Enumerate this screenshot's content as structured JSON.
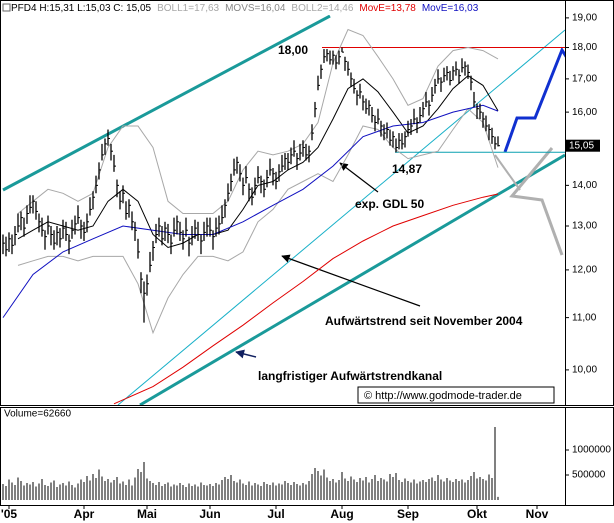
{
  "chart_data": [
    {
      "type": "ohlc",
      "header": "PFD4 H:15,31 L:15,03 C: 15,05",
      "log_scale": true,
      "color": "#000000",
      "xlim": [
        0,
        188
      ],
      "ylim": [
        9.38,
        19.1
      ],
      "yticks": [
        {
          "value": 10,
          "label": "10,00"
        },
        {
          "value": 11,
          "label": "11,00"
        },
        {
          "value": 12,
          "label": "12,00"
        },
        {
          "value": 13,
          "label": "13,00"
        },
        {
          "value": 14,
          "label": "14,00"
        },
        {
          "value": 15,
          "label": "15,00"
        },
        {
          "value": 16,
          "label": "16,00"
        },
        {
          "value": 17,
          "label": "17,00"
        },
        {
          "value": 18,
          "label": "18,00"
        },
        {
          "value": 19,
          "label": "19,00"
        }
      ],
      "high": [
        12.8,
        12.75,
        12.85,
        12.8,
        13.0,
        13.3,
        13.35,
        13.2,
        13.5,
        13.75,
        13.75,
        13.6,
        13.3,
        13.2,
        12.9,
        13.25,
        13.0,
        12.9,
        13.0,
        12.95,
        13.15,
        13.1,
        12.8,
        13.15,
        13.25,
        13.5,
        13.15,
        13.1,
        13.3,
        13.7,
        13.85,
        14.25,
        14.6,
        15.1,
        15.25,
        15.5,
        15.1,
        14.8,
        14.15,
        13.85,
        14.0,
        13.6,
        13.65,
        13.35,
        13.1,
        12.7,
        11.95,
        11.75,
        11.9,
        12.4,
        12.65,
        13.05,
        13.2,
        13.0,
        13.1,
        13.05,
        12.8,
        13.2,
        13.25,
        13.1,
        12.9,
        13.2,
        12.75,
        13.0,
        13.15,
        13.1,
        12.8,
        13.1,
        13.2,
        13.2,
        12.9,
        13.2,
        13.25,
        13.5,
        13.65,
        14.05,
        14.3,
        14.7,
        14.75,
        14.55,
        14.2,
        14.5,
        14.05,
        13.95,
        14.2,
        14.5,
        14.25,
        14.15,
        14.4,
        14.7,
        14.45,
        14.35,
        14.55,
        14.8,
        14.85,
        14.85,
        15.0,
        15.2,
        14.85,
        15.1,
        15.2,
        15.1,
        15.05,
        15.65,
        16.3,
        17.1,
        17.45,
        17.95,
        17.95,
        17.9,
        17.9,
        17.75,
        17.9,
        18.0,
        17.7,
        17.55,
        17.2,
        17.0,
        16.65,
        16.85,
        16.5,
        16.4,
        16.35,
        16.15,
        15.9,
        16.1,
        15.75,
        15.65,
        15.7,
        15.5,
        15.45,
        15.25,
        15.4,
        15.4,
        15.45,
        15.75,
        15.8,
        16.1,
        15.85,
        16.15,
        16.3,
        16.6,
        16.35,
        16.75,
        17.0,
        17.3,
        17.05,
        17.35,
        17.4,
        17.25,
        17.4,
        17.55,
        17.3,
        17.65,
        17.55,
        17.45,
        17.1,
        16.6,
        16.25,
        16.25,
        16.0,
        15.9,
        15.65,
        15.55,
        15.3,
        15.31
      ],
      "low": [
        12.35,
        12.3,
        12.4,
        12.35,
        12.55,
        12.85,
        12.9,
        12.75,
        13.05,
        13.3,
        13.3,
        13.15,
        12.85,
        12.75,
        12.45,
        12.8,
        12.55,
        12.45,
        12.55,
        12.5,
        12.7,
        12.65,
        12.35,
        12.7,
        12.8,
        13.05,
        12.7,
        12.65,
        12.85,
        13.25,
        13.4,
        13.8,
        14.15,
        14.65,
        14.8,
        15.05,
        14.65,
        14.35,
        13.7,
        13.4,
        13.55,
        13.15,
        13.2,
        12.9,
        12.65,
        12.25,
        11.5,
        10.9,
        11.45,
        11.95,
        12.2,
        12.6,
        12.75,
        12.55,
        12.65,
        12.6,
        12.35,
        12.75,
        12.8,
        12.65,
        12.45,
        12.75,
        12.3,
        12.55,
        12.7,
        12.65,
        12.35,
        12.65,
        12.75,
        12.75,
        12.45,
        12.75,
        12.8,
        13.05,
        13.2,
        13.6,
        13.85,
        14.25,
        14.3,
        14.1,
        13.75,
        14.05,
        13.6,
        13.5,
        13.75,
        14.05,
        13.8,
        13.7,
        13.95,
        14.25,
        14.0,
        13.9,
        14.1,
        14.35,
        14.4,
        14.4,
        14.55,
        14.75,
        14.4,
        14.65,
        14.75,
        14.65,
        14.6,
        15.2,
        15.85,
        16.65,
        17.0,
        17.5,
        17.55,
        17.45,
        17.45,
        17.3,
        17.45,
        17.85,
        17.25,
        17.1,
        16.75,
        16.55,
        16.2,
        16.4,
        16.05,
        15.95,
        15.9,
        15.7,
        15.45,
        15.65,
        15.3,
        15.2,
        15.25,
        15.05,
        15.0,
        14.87,
        14.95,
        14.95,
        15.0,
        15.3,
        15.35,
        15.65,
        15.4,
        15.7,
        15.85,
        16.15,
        15.9,
        16.3,
        16.55,
        16.85,
        16.6,
        16.9,
        16.95,
        16.8,
        16.95,
        17.1,
        16.85,
        17.2,
        17.1,
        17.0,
        16.65,
        16.15,
        15.8,
        15.8,
        15.55,
        15.45,
        15.2,
        15.1,
        14.95,
        15.03
      ],
      "close": [
        12.6,
        12.45,
        12.7,
        12.55,
        12.8,
        13.0,
        13.2,
        12.95,
        13.3,
        13.45,
        13.6,
        13.35,
        13.1,
        12.9,
        12.75,
        13.0,
        12.8,
        12.6,
        12.85,
        12.7,
        12.95,
        12.8,
        12.65,
        12.9,
        13.05,
        13.2,
        13.0,
        12.85,
        13.1,
        13.4,
        13.7,
        14.0,
        14.4,
        14.8,
        15.1,
        15.25,
        14.9,
        14.5,
        14.0,
        13.6,
        13.8,
        13.3,
        13.5,
        13.1,
        12.9,
        12.4,
        11.8,
        11.5,
        11.7,
        12.1,
        12.5,
        12.8,
        13.0,
        12.7,
        12.95,
        12.8,
        12.6,
        12.9,
        13.1,
        12.85,
        12.7,
        12.9,
        12.6,
        12.75,
        12.95,
        12.8,
        12.65,
        12.85,
        13.0,
        12.9,
        12.75,
        12.95,
        13.05,
        13.2,
        13.5,
        13.8,
        14.1,
        14.4,
        14.6,
        14.3,
        14.0,
        14.2,
        13.9,
        13.7,
        14.0,
        14.2,
        14.1,
        13.9,
        14.2,
        14.4,
        14.3,
        14.1,
        14.35,
        14.5,
        14.7,
        14.6,
        14.8,
        14.9,
        14.7,
        14.85,
        15.0,
        14.8,
        14.9,
        15.4,
        16.1,
        16.8,
        17.3,
        17.7,
        17.8,
        17.6,
        17.75,
        17.5,
        17.7,
        17.85,
        17.55,
        17.3,
        17.0,
        16.7,
        16.5,
        16.6,
        16.3,
        16.1,
        16.2,
        15.9,
        15.7,
        15.8,
        15.6,
        15.4,
        15.5,
        15.2,
        15.3,
        15.0,
        15.2,
        15.1,
        15.3,
        15.5,
        15.6,
        15.8,
        15.7,
        15.9,
        16.1,
        16.3,
        16.2,
        16.5,
        16.8,
        17.0,
        16.9,
        17.1,
        17.2,
        16.95,
        17.25,
        17.3,
        17.1,
        17.35,
        17.4,
        17.2,
        16.9,
        16.3,
        16.1,
        16.0,
        15.8,
        15.6,
        15.5,
        15.3,
        15.1,
        15.05
      ],
      "series": [
        {
          "name": "BOLL1=17,63",
          "color": "#a8a8a8",
          "x": [
            5,
            10,
            15,
            20,
            25,
            30,
            35,
            40,
            45,
            50,
            55,
            60,
            65,
            70,
            75,
            80,
            85,
            90,
            95,
            100,
            105,
            110,
            115,
            120,
            125,
            130,
            135,
            140,
            145,
            150,
            155,
            160,
            165
          ],
          "values": [
            13.3,
            13.6,
            13.9,
            13.8,
            13.6,
            13.8,
            15.0,
            15.6,
            15.6,
            15.0,
            13.6,
            13.3,
            13.3,
            13.3,
            13.6,
            14.4,
            14.9,
            14.8,
            14.9,
            15.1,
            15.7,
            17.5,
            18.6,
            18.4,
            17.7,
            17.0,
            16.2,
            16.4,
            17.4,
            17.9,
            18.0,
            17.9,
            17.63
          ]
        },
        {
          "name": "MOVS=16,04",
          "color": "#000000",
          "x": [
            5,
            10,
            15,
            20,
            25,
            30,
            35,
            40,
            45,
            50,
            55,
            60,
            65,
            70,
            75,
            80,
            85,
            90,
            95,
            100,
            105,
            110,
            115,
            120,
            125,
            130,
            135,
            140,
            145,
            150,
            155,
            160,
            165
          ],
          "values": [
            12.7,
            12.9,
            13.1,
            13.0,
            12.9,
            13.0,
            13.6,
            13.9,
            13.6,
            12.8,
            12.5,
            12.6,
            12.8,
            12.8,
            12.9,
            13.4,
            14.0,
            14.1,
            14.4,
            14.6,
            15.0,
            15.8,
            16.7,
            17.0,
            16.6,
            16.0,
            15.4,
            15.6,
            16.1,
            16.7,
            17.1,
            16.8,
            16.04
          ]
        },
        {
          "name": "BOLL2=14,46",
          "color": "#a8a8a8",
          "x": [
            5,
            10,
            15,
            20,
            25,
            30,
            35,
            40,
            45,
            50,
            55,
            60,
            65,
            70,
            75,
            80,
            85,
            90,
            95,
            100,
            105,
            110,
            115,
            120,
            125,
            130,
            135,
            140,
            145,
            150,
            155,
            160,
            165
          ],
          "values": [
            12.1,
            12.2,
            12.3,
            12.3,
            12.2,
            12.3,
            12.3,
            12.3,
            11.7,
            10.7,
            11.4,
            11.9,
            12.3,
            12.3,
            12.2,
            12.4,
            13.1,
            13.4,
            13.9,
            14.1,
            14.3,
            14.1,
            14.8,
            15.6,
            15.5,
            15.0,
            14.7,
            14.8,
            14.9,
            15.5,
            16.1,
            15.7,
            14.46
          ]
        },
        {
          "name": "MovE=13,78",
          "color": "#e00000",
          "x": [
            37,
            50,
            60,
            70,
            80,
            90,
            100,
            110,
            120,
            130,
            140,
            150,
            160,
            165
          ],
          "values": [
            9.4,
            9.7,
            10.05,
            10.45,
            10.85,
            11.3,
            11.75,
            12.25,
            12.65,
            13.0,
            13.25,
            13.5,
            13.7,
            13.78
          ]
        },
        {
          "name": "MovE=16,03",
          "color": "#1010c0",
          "x": [
            0,
            10,
            20,
            30,
            40,
            50,
            60,
            70,
            80,
            90,
            100,
            110,
            120,
            130,
            140,
            150,
            160,
            165
          ],
          "values": [
            11.0,
            11.9,
            12.4,
            12.7,
            13.0,
            12.9,
            12.8,
            12.8,
            13.1,
            13.5,
            13.9,
            14.5,
            15.3,
            15.6,
            15.7,
            16.0,
            16.2,
            16.03
          ]
        }
      ],
      "annotations": [
        {
          "text": "18,00",
          "value": 18,
          "color": "#e00000"
        },
        {
          "text": "14,87",
          "value": 14.87,
          "color": "#0aa0b0"
        },
        {
          "text": "exp. GDL 50"
        },
        {
          "text": "Aufwärtstrend seit November 2004"
        },
        {
          "text": "langfristiger Aufwärtstrendkanal"
        }
      ],
      "last_price": {
        "value": 15.05,
        "label": "15,05"
      },
      "credit": "© http://www.godmode-trader.de"
    },
    {
      "type": "volume",
      "title": "Volume=62660",
      "color": "#000000",
      "xlim": [
        0,
        188
      ],
      "ylim": [
        0,
        1560000
      ],
      "yticks": [
        500000,
        1000000
      ],
      "xticks": [
        {
          "value": 2,
          "label": "'05"
        },
        {
          "value": 27,
          "label": "Apr"
        },
        {
          "value": 48,
          "label": "Mai"
        },
        {
          "value": 69,
          "label": "Jun"
        },
        {
          "value": 91,
          "label": "Jul"
        },
        {
          "value": 113,
          "label": "Aug"
        },
        {
          "value": 135,
          "label": "Sep"
        },
        {
          "value": 158,
          "label": "Okt"
        },
        {
          "value": 178,
          "label": "Nov"
        }
      ],
      "values": [
        320000,
        280000,
        410000,
        350000,
        300000,
        450000,
        380000,
        290000,
        340000,
        310000,
        360000,
        270000,
        330000,
        420000,
        300000,
        280000,
        350000,
        390000,
        260000,
        310000,
        340000,
        290000,
        370000,
        300000,
        250000,
        330000,
        410000,
        360000,
        480000,
        390000,
        520000,
        440000,
        610000,
        470000,
        380000,
        420000,
        350000,
        400000,
        460000,
        330000,
        370000,
        300000,
        410000,
        290000,
        450000,
        620000,
        560000,
        760000,
        430000,
        380000,
        340000,
        300000,
        360000,
        280000,
        320000,
        350000,
        270000,
        310000,
        290000,
        340000,
        300000,
        260000,
        330000,
        280000,
        310000,
        270000,
        350000,
        300000,
        290000,
        320000,
        280000,
        340000,
        310000,
        400000,
        460000,
        420000,
        500000,
        380000,
        350000,
        410000,
        330000,
        300000,
        370000,
        290000,
        340000,
        310000,
        280000,
        360000,
        320000,
        300000,
        350000,
        290000,
        330000,
        310000,
        380000,
        340000,
        300000,
        360000,
        320000,
        290000,
        340000,
        310000,
        380000,
        520000,
        640000,
        580000,
        490000,
        610000,
        450000,
        380000,
        420000,
        350000,
        400000,
        560000,
        430000,
        380000,
        470000,
        410000,
        360000,
        440000,
        390000,
        460000,
        350000,
        420000,
        500000,
        380000,
        440000,
        410000,
        370000,
        520000,
        460000,
        540000,
        400000,
        360000,
        430000,
        380000,
        350000,
        410000,
        330000,
        370000,
        400000,
        360000,
        420000,
        450000,
        380000,
        500000,
        410000,
        370000,
        440000,
        390000,
        360000,
        420000,
        380000,
        410000,
        350000,
        400000,
        480000,
        560000,
        430000,
        460000,
        420000,
        390000,
        510000,
        440000,
        1460000,
        62660
      ]
    }
  ]
}
